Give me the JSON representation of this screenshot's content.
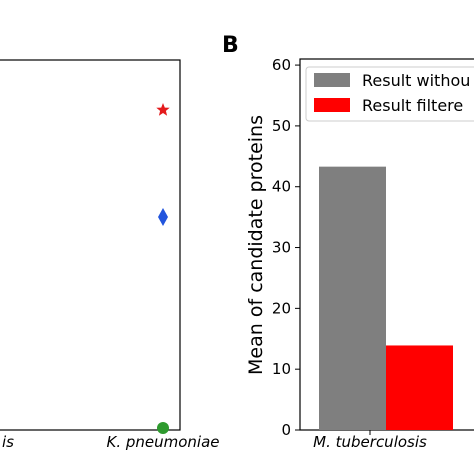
{
  "panel_a": {
    "chart_data": {
      "type": "scatter",
      "categories": [
        "...is",
        "K. pneumoniae"
      ],
      "points": [
        {
          "category": "K. pneumoniae",
          "marker": "star",
          "color": "#e41a1c"
        },
        {
          "category": "K. pneumoniae",
          "marker": "diamond",
          "color": "#2255dd"
        },
        {
          "category": "K. pneumoniae",
          "marker": "circle",
          "color": "#2e9a2e"
        }
      ]
    },
    "tick_labels": [
      "is",
      "K. pneumoniae"
    ]
  },
  "panel_b": {
    "label": "B",
    "chart_data": {
      "type": "bar",
      "categories": [
        "M. tuberculosis"
      ],
      "series": [
        {
          "name": "Result withou",
          "values": [
            43.3
          ],
          "color": "#7f7f7f"
        },
        {
          "name": "Result filtere",
          "values": [
            13.9
          ],
          "color": "#ff0000"
        }
      ],
      "ylabel": "Mean of candidate proteins",
      "ylim": [
        0,
        61
      ],
      "yticks": [
        "0",
        "10",
        "20",
        "30",
        "40",
        "50",
        "60"
      ],
      "legend_position": "top-right",
      "grid": false
    }
  }
}
